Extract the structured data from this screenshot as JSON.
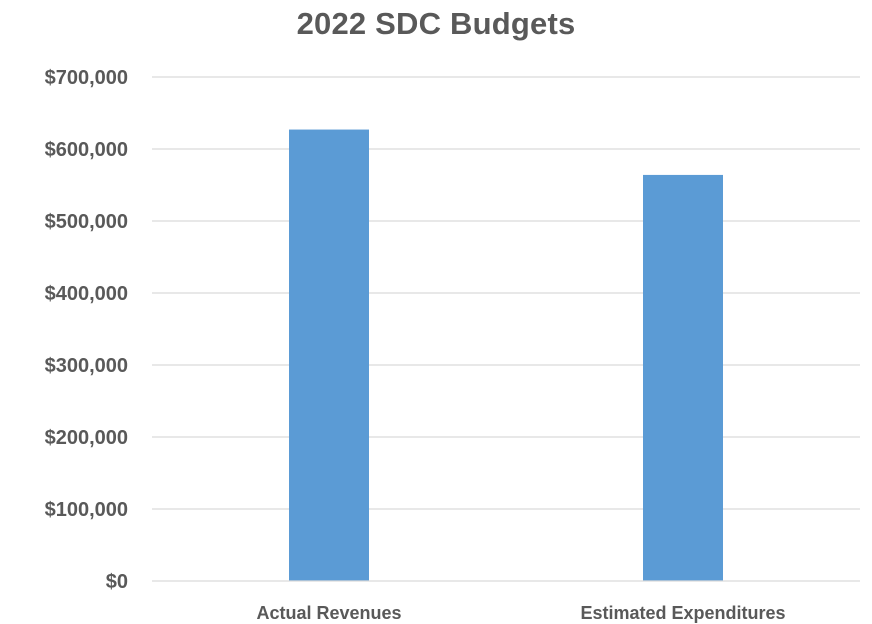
{
  "chart_data": {
    "type": "bar",
    "title": "2022 SDC Budgets",
    "categories": [
      "Actual Revenues",
      "Estimated Expenditures"
    ],
    "values": [
      627000,
      564000
    ],
    "ylim": [
      0,
      700000
    ],
    "yticks": [
      0,
      100000,
      200000,
      300000,
      400000,
      500000,
      600000,
      700000
    ],
    "ytick_labels": [
      "$0",
      "$100,000",
      "$200,000",
      "$300,000",
      "$400,000",
      "$500,000",
      "$600,000",
      "$700,000"
    ],
    "grid": true,
    "legend": "none",
    "colors": {
      "bar": "#5B9BD5",
      "grid": "#D9D9D9",
      "text": "#595959"
    }
  }
}
